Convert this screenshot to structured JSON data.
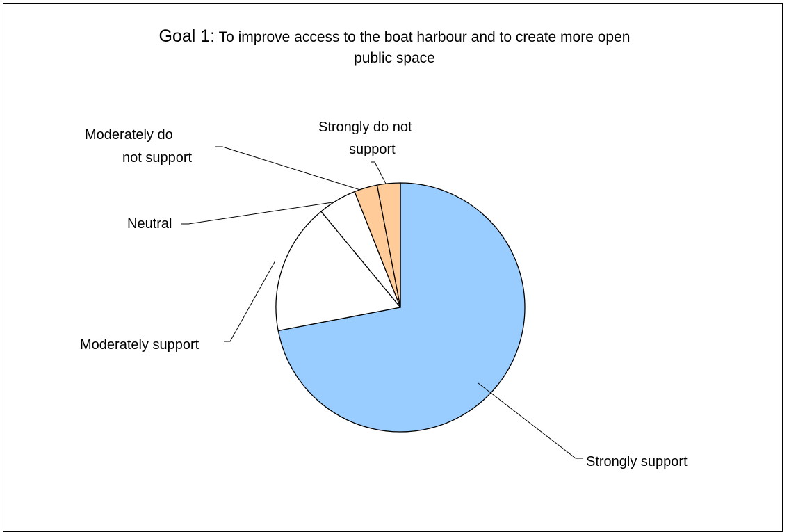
{
  "chart_data": {
    "type": "pie",
    "title_prefix": "Goal 1:",
    "title_line1": "To improve access to the boat harbour and to create more open",
    "title_line2": "public space",
    "slices": [
      {
        "label": "Strongly support",
        "value": 72,
        "color": "#99ccff"
      },
      {
        "label": "Moderately support",
        "value": 17,
        "color": "#ffffff"
      },
      {
        "label": "Neutral",
        "value": 5,
        "color": "#ffffff"
      },
      {
        "label": "Moderately do not support",
        "value": 3,
        "color": "#ffcc99"
      },
      {
        "label": "Strongly do not support",
        "value": 3,
        "color": "#ffcc99"
      }
    ],
    "legend": "none"
  }
}
